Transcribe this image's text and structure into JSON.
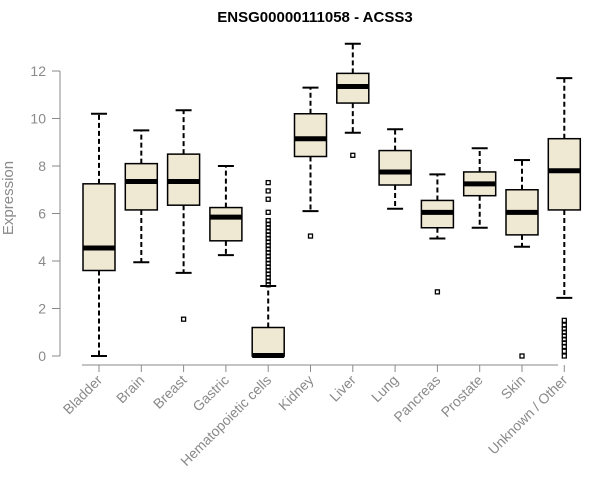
{
  "chart_data": {
    "type": "box",
    "title": "ENSG00000111058 - ACSS3",
    "xlabel": "",
    "ylabel": "Expression",
    "ylim": [
      0,
      13.2
    ],
    "y_ticks": [
      "0",
      "2",
      "4",
      "6",
      "8",
      "10",
      "12"
    ],
    "box_fill": "#efe8d2",
    "categories": [
      "Bladder",
      "Brain",
      "Breast",
      "Gastric",
      "Hematopoietic cells",
      "Kidney",
      "Liver",
      "Lung",
      "Pancreas",
      "Prostate",
      "Skin",
      "Unknown / Other"
    ],
    "series": [
      {
        "category": "Bladder",
        "whisker_low": 0.0,
        "q1": 3.6,
        "median": 4.55,
        "q3": 7.25,
        "whisker_high": 10.2,
        "outliers": []
      },
      {
        "category": "Brain",
        "whisker_low": 3.95,
        "q1": 6.15,
        "median": 7.35,
        "q3": 8.1,
        "whisker_high": 9.5,
        "outliers": []
      },
      {
        "category": "Breast",
        "whisker_low": 3.5,
        "q1": 6.35,
        "median": 7.35,
        "q3": 8.5,
        "whisker_high": 10.35,
        "outliers": [
          1.55
        ]
      },
      {
        "category": "Gastric",
        "whisker_low": 4.25,
        "q1": 4.85,
        "median": 5.85,
        "q3": 6.25,
        "whisker_high": 8.0,
        "outliers": []
      },
      {
        "category": "Hematopoietic cells",
        "whisker_low": 0.0,
        "q1": 0.0,
        "median": 0.02,
        "q3": 1.2,
        "whisker_high": 2.95,
        "outliers": [
          3.0,
          3.15,
          3.3,
          3.45,
          3.6,
          3.75,
          3.9,
          4.05,
          4.2,
          4.35,
          4.5,
          4.65,
          4.8,
          4.95,
          5.1,
          5.25,
          5.4,
          5.55,
          5.7,
          6.05,
          6.6,
          6.95,
          7.3
        ]
      },
      {
        "category": "Kidney",
        "whisker_low": 6.1,
        "q1": 8.4,
        "median": 9.15,
        "q3": 10.2,
        "whisker_high": 11.3,
        "outliers": [
          5.05
        ]
      },
      {
        "category": "Liver",
        "whisker_low": 9.4,
        "q1": 10.65,
        "median": 11.35,
        "q3": 11.9,
        "whisker_high": 13.15,
        "outliers": [
          8.45
        ]
      },
      {
        "category": "Lung",
        "whisker_low": 6.2,
        "q1": 7.2,
        "median": 7.75,
        "q3": 8.65,
        "whisker_high": 9.55,
        "outliers": []
      },
      {
        "category": "Pancreas",
        "whisker_low": 4.95,
        "q1": 5.4,
        "median": 6.05,
        "q3": 6.55,
        "whisker_high": 7.65,
        "outliers": [
          2.7
        ]
      },
      {
        "category": "Prostate",
        "whisker_low": 5.4,
        "q1": 6.75,
        "median": 7.25,
        "q3": 7.75,
        "whisker_high": 8.75,
        "outliers": []
      },
      {
        "category": "Skin",
        "whisker_low": 4.6,
        "q1": 5.1,
        "median": 6.05,
        "q3": 7.0,
        "whisker_high": 8.25,
        "outliers": [
          0.0
        ]
      },
      {
        "category": "Unknown / Other",
        "whisker_low": 2.45,
        "q1": 6.15,
        "median": 7.8,
        "q3": 9.15,
        "whisker_high": 11.7,
        "outliers": [
          0.0,
          0.2,
          0.4,
          0.55,
          0.7,
          0.85,
          1.0,
          1.15,
          1.3,
          1.5
        ]
      }
    ]
  }
}
